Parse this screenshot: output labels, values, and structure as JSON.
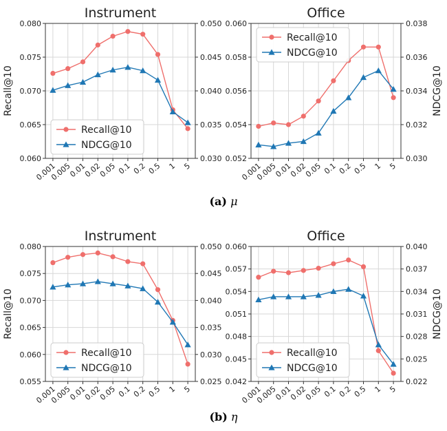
{
  "colors": {
    "recall": "#ef6f6c",
    "ndcg": "#1f77b4",
    "grid": "#d7d7d7",
    "axis": "#333333"
  },
  "captions": [
    {
      "label": "(a)",
      "symbol": "μ"
    },
    {
      "label": "(b)",
      "symbol": "η"
    }
  ],
  "chart_data": [
    {
      "type": "line",
      "title": "Instrument",
      "ylabel_left": "Recall@10",
      "ylabel_right": "",
      "legend_position": "lower-left",
      "categories": [
        "0.001",
        "0.005",
        "0.01",
        "0.02",
        "0.05",
        "0.1",
        "0.2",
        "0.5",
        "1",
        "5"
      ],
      "left_ticks": [
        "0.060",
        "0.065",
        "0.070",
        "0.075",
        "0.080"
      ],
      "right_ticks": [
        "0.030",
        "0.035",
        "0.040",
        "0.045",
        "0.050"
      ],
      "ylim_left": [
        0.06,
        0.08
      ],
      "ylim_right": [
        0.03,
        0.05
      ],
      "series": [
        {
          "name": "Recall@10",
          "axis": "left",
          "marker": "circle",
          "values": [
            0.0726,
            0.0733,
            0.0743,
            0.0768,
            0.0781,
            0.0788,
            0.0784,
            0.0754,
            0.0672,
            0.0644
          ]
        },
        {
          "name": "NDCG@10",
          "axis": "right",
          "marker": "triangle",
          "values": [
            0.0401,
            0.0408,
            0.0413,
            0.0424,
            0.0431,
            0.0435,
            0.043,
            0.0416,
            0.0369,
            0.0353
          ]
        }
      ]
    },
    {
      "type": "line",
      "title": "Office",
      "ylabel_left": "",
      "ylabel_right": "NDCG@10",
      "legend_position": "upper-left",
      "categories": [
        "0.001",
        "0.005",
        "0.01",
        "0.02",
        "0.05",
        "0.1",
        "0.2",
        "0.5",
        "1",
        "5"
      ],
      "left_ticks": [
        "0.052",
        "0.054",
        "0.056",
        "0.058",
        "0.060"
      ],
      "right_ticks": [
        "0.030",
        "0.032",
        "0.034",
        "0.036",
        "0.038"
      ],
      "ylim_left": [
        0.052,
        0.06
      ],
      "ylim_right": [
        0.03,
        0.038
      ],
      "series": [
        {
          "name": "Recall@10",
          "axis": "left",
          "marker": "circle",
          "values": [
            0.0539,
            0.0541,
            0.054,
            0.0545,
            0.0554,
            0.0566,
            0.0578,
            0.0586,
            0.0586,
            0.0556
          ]
        },
        {
          "name": "NDCG@10",
          "axis": "right",
          "marker": "triangle",
          "values": [
            0.0308,
            0.0307,
            0.0309,
            0.031,
            0.0315,
            0.0328,
            0.0336,
            0.0348,
            0.0352,
            0.0341
          ]
        }
      ]
    },
    {
      "type": "line",
      "title": "Instrument",
      "ylabel_left": "Recall@10",
      "ylabel_right": "",
      "legend_position": "lower-left",
      "categories": [
        "0.001",
        "0.005",
        "0.01",
        "0.02",
        "0.05",
        "0.1",
        "0.2",
        "0.5",
        "1",
        "5"
      ],
      "left_ticks": [
        "0.055",
        "0.060",
        "0.065",
        "0.070",
        "0.075",
        "0.080"
      ],
      "right_ticks": [
        "0.025",
        "0.030",
        "0.035",
        "0.040",
        "0.045",
        "0.050"
      ],
      "ylim_left": [
        0.055,
        0.08
      ],
      "ylim_right": [
        0.025,
        0.05
      ],
      "series": [
        {
          "name": "Recall@10",
          "axis": "left",
          "marker": "circle",
          "values": [
            0.077,
            0.078,
            0.0785,
            0.0788,
            0.0781,
            0.0772,
            0.0768,
            0.072,
            0.0663,
            0.0582
          ]
        },
        {
          "name": "NDCG@10",
          "axis": "right",
          "marker": "triangle",
          "values": [
            0.0425,
            0.0429,
            0.0431,
            0.0435,
            0.0431,
            0.0427,
            0.0422,
            0.0397,
            0.036,
            0.0318
          ]
        }
      ]
    },
    {
      "type": "line",
      "title": "Office",
      "ylabel_left": "",
      "ylabel_right": "NDCG@10",
      "legend_position": "lower-left",
      "categories": [
        "0.001",
        "0.005",
        "0.01",
        "0.02",
        "0.05",
        "0.1",
        "0.2",
        "0.5",
        "1",
        "5"
      ],
      "left_ticks": [
        "0.042",
        "0.045",
        "0.048",
        "0.051",
        "0.054",
        "0.057",
        "0.060"
      ],
      "right_ticks": [
        "0.022",
        "0.025",
        "0.028",
        "0.031",
        "0.034",
        "0.037",
        "0.040"
      ],
      "ylim_left": [
        0.042,
        0.06
      ],
      "ylim_right": [
        0.022,
        0.04
      ],
      "series": [
        {
          "name": "Recall@10",
          "axis": "left",
          "marker": "circle",
          "values": [
            0.0559,
            0.0567,
            0.0565,
            0.0568,
            0.0571,
            0.0577,
            0.0582,
            0.0573,
            0.0461,
            0.0431
          ]
        },
        {
          "name": "NDCG@10",
          "axis": "right",
          "marker": "triangle",
          "values": [
            0.0329,
            0.0333,
            0.0333,
            0.0333,
            0.0335,
            0.034,
            0.0343,
            0.0334,
            0.0269,
            0.0243
          ]
        }
      ]
    }
  ]
}
